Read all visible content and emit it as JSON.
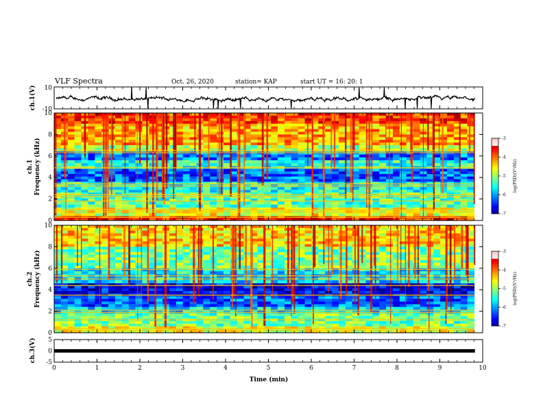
{
  "header": {
    "title": "VLF Spectra",
    "date": "Oct. 26, 2020",
    "station": "station= KAP",
    "start": "start  UT  =   16: 20: 1"
  },
  "chart_data": [
    {
      "type": "line",
      "panel": "ch1-waveform",
      "ylabel": "ch.1(V)",
      "ylim": [
        -10,
        10
      ],
      "ytick_labels": [
        "10",
        "-10"
      ],
      "xlim": [
        0,
        10
      ],
      "approx_level": -1,
      "color": "#000000"
    },
    {
      "type": "heatmap",
      "panel": "ch1-spectrogram",
      "ylabel": "ch.1\nFrequency  (kHz)",
      "ylim": [
        0,
        10
      ],
      "yticks": [
        0,
        2,
        4,
        6,
        8,
        10
      ],
      "xlim": [
        0,
        10
      ],
      "data_end_min": 9.8,
      "colorbar": {
        "label": "log(PSD)(V²/Hz)",
        "range": [
          -7,
          -3
        ],
        "ticks": [
          "-3",
          "-4",
          "-5",
          "-6",
          "-7"
        ]
      },
      "bands_khz": [
        {
          "lo": 9.0,
          "hi": 10.0,
          "level": 0.82
        },
        {
          "lo": 7.0,
          "hi": 9.0,
          "level": 0.7
        },
        {
          "lo": 6.4,
          "hi": 7.0,
          "level": 0.55
        },
        {
          "lo": 5.6,
          "hi": 6.4,
          "level": 0.25
        },
        {
          "lo": 4.8,
          "hi": 5.6,
          "level": 0.42
        },
        {
          "lo": 3.6,
          "hi": 4.8,
          "level": 0.22
        },
        {
          "lo": 2.6,
          "hi": 3.6,
          "level": 0.4
        },
        {
          "lo": 1.2,
          "hi": 2.6,
          "level": 0.46
        },
        {
          "lo": 0.4,
          "hi": 1.2,
          "level": 0.6
        },
        {
          "lo": 0.0,
          "hi": 0.4,
          "level": 0.86
        }
      ],
      "lines_khz": [
        0.3,
        0.8,
        1.0,
        1.8,
        2.2,
        2.4,
        3.2,
        3.4,
        4.9,
        6.3,
        6.5
      ]
    },
    {
      "type": "heatmap",
      "panel": "ch2-spectrogram",
      "ylabel": "ch.2\nFrequency  (kHz)",
      "ylim": [
        0,
        10
      ],
      "yticks": [
        0,
        2,
        4,
        6,
        8,
        10
      ],
      "xlim": [
        0,
        10
      ],
      "data_end_min": 9.8,
      "colorbar": {
        "label": "log(PSD)(V²/Hz)",
        "range": [
          -7,
          -3
        ],
        "ticks": [
          "-3",
          "-4",
          "-5",
          "-6",
          "-7"
        ]
      },
      "bands_khz": [
        {
          "lo": 8.0,
          "hi": 10.0,
          "level": 0.66
        },
        {
          "lo": 6.0,
          "hi": 8.0,
          "level": 0.5
        },
        {
          "lo": 4.6,
          "hi": 6.0,
          "level": 0.36
        },
        {
          "lo": 3.4,
          "hi": 4.6,
          "level": 0.12
        },
        {
          "lo": 2.4,
          "hi": 3.4,
          "level": 0.22
        },
        {
          "lo": 1.8,
          "hi": 2.4,
          "level": 0.34
        },
        {
          "lo": 0.6,
          "hi": 1.8,
          "level": 0.48
        },
        {
          "lo": 0.0,
          "hi": 0.6,
          "level": 0.6
        }
      ],
      "lines_khz": [
        0.2,
        0.4,
        1.2,
        1.9,
        2.1,
        3.5,
        4.4,
        5.0,
        5.3,
        5.9
      ]
    },
    {
      "type": "line",
      "panel": "ch3-signal",
      "ylabel": "ch.3(V)",
      "ylim": [
        -5,
        5
      ],
      "ytick_labels": [
        "5",
        "0",
        "-5"
      ],
      "xlim": [
        0,
        10
      ],
      "xlabel": "Time  (min)",
      "xticks": [
        "0",
        "1",
        "2",
        "3",
        "4",
        "5",
        "6",
        "7",
        "8",
        "9",
        "10"
      ],
      "constant_value": 0,
      "color": "#000000"
    }
  ]
}
